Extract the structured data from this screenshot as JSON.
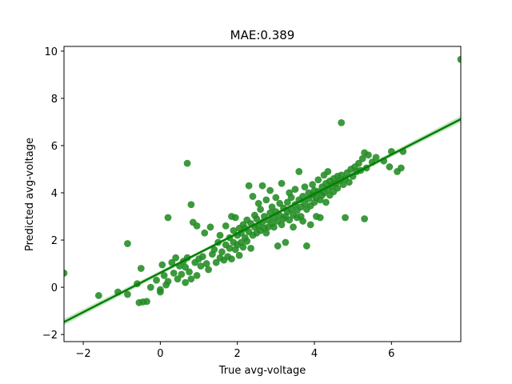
{
  "chart_data": {
    "type": "scatter",
    "title": "MAE:0.389",
    "xlabel": "True avg-voltage",
    "ylabel": "Predicted avg-voltage",
    "xlim": [
      -2.5,
      7.8
    ],
    "ylim": [
      -2.3,
      10.2
    ],
    "xticks": [
      "−2",
      "0",
      "2",
      "4",
      "6"
    ],
    "xtick_values": [
      -2,
      0,
      2,
      4,
      6
    ],
    "yticks": [
      "−2",
      "0",
      "2",
      "4",
      "6",
      "8",
      "10"
    ],
    "ytick_values": [
      -2,
      0,
      2,
      4,
      6,
      8,
      10
    ],
    "grid": false,
    "point_color": "#228B22",
    "line_color": "#008000",
    "band_color": "#9ed49e",
    "regression": {
      "x_start": -2.5,
      "y_start": -1.47,
      "x_end": 7.8,
      "y_end": 7.12,
      "band_halfwidth_ends": 0.14,
      "band_halfwidth_mid": 0.04
    },
    "points": [
      [
        -2.5,
        0.6
      ],
      [
        -1.6,
        -0.35
      ],
      [
        -1.1,
        -0.2
      ],
      [
        -0.85,
        1.85
      ],
      [
        -0.85,
        -0.3
      ],
      [
        -0.6,
        0.15
      ],
      [
        -0.5,
        0.8
      ],
      [
        -0.55,
        -0.65
      ],
      [
        -0.45,
        -0.62
      ],
      [
        -0.35,
        -0.6
      ],
      [
        -0.25,
        0.0
      ],
      [
        -0.1,
        0.3
      ],
      [
        0.0,
        -0.1
      ],
      [
        0.0,
        -0.2
      ],
      [
        0.05,
        0.95
      ],
      [
        0.1,
        0.5
      ],
      [
        0.15,
        0.1
      ],
      [
        0.2,
        0.25
      ],
      [
        0.2,
        2.95
      ],
      [
        0.3,
        1.05
      ],
      [
        0.35,
        0.6
      ],
      [
        0.4,
        1.25
      ],
      [
        0.45,
        0.35
      ],
      [
        0.5,
        0.9
      ],
      [
        0.55,
        0.55
      ],
      [
        0.6,
        1.1
      ],
      [
        0.65,
        0.2
      ],
      [
        0.65,
        0.85
      ],
      [
        0.7,
        5.25
      ],
      [
        0.7,
        1.25
      ],
      [
        0.75,
        0.65
      ],
      [
        0.8,
        3.5
      ],
      [
        0.8,
        0.35
      ],
      [
        0.85,
        2.75
      ],
      [
        0.9,
        1.05
      ],
      [
        0.95,
        2.6
      ],
      [
        0.95,
        0.5
      ],
      [
        1.0,
        1.2
      ],
      [
        1.05,
        0.9
      ],
      [
        1.1,
        1.3
      ],
      [
        1.15,
        2.3
      ],
      [
        1.2,
        1.0
      ],
      [
        1.25,
        0.75
      ],
      [
        1.3,
        2.55
      ],
      [
        1.35,
        1.4
      ],
      [
        1.4,
        1.6
      ],
      [
        1.45,
        1.05
      ],
      [
        1.5,
        1.9
      ],
      [
        1.55,
        1.25
      ],
      [
        1.55,
        2.2
      ],
      [
        1.6,
        1.5
      ],
      [
        1.65,
        1.15
      ],
      [
        1.7,
        1.8
      ],
      [
        1.7,
        2.6
      ],
      [
        1.75,
        1.3
      ],
      [
        1.8,
        1.65
      ],
      [
        1.8,
        2.1
      ],
      [
        1.85,
        1.2
      ],
      [
        1.85,
        3.0
      ],
      [
        1.9,
        1.9
      ],
      [
        1.9,
        2.4
      ],
      [
        1.95,
        1.6
      ],
      [
        1.95,
        2.95
      ],
      [
        2.0,
        2.2
      ],
      [
        2.0,
        1.8
      ],
      [
        2.05,
        2.5
      ],
      [
        2.05,
        1.35
      ],
      [
        2.1,
        2.3
      ],
      [
        2.1,
        1.9
      ],
      [
        2.15,
        2.65
      ],
      [
        2.15,
        1.7
      ],
      [
        2.2,
        2.1
      ],
      [
        2.2,
        2.5
      ],
      [
        2.25,
        1.95
      ],
      [
        2.25,
        2.85
      ],
      [
        2.3,
        2.35
      ],
      [
        2.3,
        4.3
      ],
      [
        2.35,
        2.7
      ],
      [
        2.35,
        1.65
      ],
      [
        2.4,
        2.2
      ],
      [
        2.4,
        3.85
      ],
      [
        2.45,
        2.55
      ],
      [
        2.45,
        3.05
      ],
      [
        2.5,
        2.3
      ],
      [
        2.5,
        2.9
      ],
      [
        2.55,
        2.6
      ],
      [
        2.55,
        3.55
      ],
      [
        2.6,
        2.4
      ],
      [
        2.6,
        3.3
      ],
      [
        2.65,
        2.75
      ],
      [
        2.65,
        4.3
      ],
      [
        2.7,
        2.5
      ],
      [
        2.7,
        3.0
      ],
      [
        2.75,
        2.3
      ],
      [
        2.75,
        3.7
      ],
      [
        2.8,
        2.85
      ],
      [
        2.8,
        2.55
      ],
      [
        2.85,
        3.15
      ],
      [
        2.85,
        4.1
      ],
      [
        2.9,
        2.7
      ],
      [
        2.9,
        3.4
      ],
      [
        2.95,
        2.95
      ],
      [
        2.95,
        2.55
      ],
      [
        3.0,
        3.2
      ],
      [
        3.0,
        3.8
      ],
      [
        3.05,
        2.8
      ],
      [
        3.05,
        1.75
      ],
      [
        3.1,
        3.05
      ],
      [
        3.1,
        3.55
      ],
      [
        3.15,
        2.65
      ],
      [
        3.15,
        4.4
      ],
      [
        3.2,
        3.35
      ],
      [
        3.2,
        2.9
      ],
      [
        3.25,
        3.0
      ],
      [
        3.25,
        1.9
      ],
      [
        3.3,
        3.6
      ],
      [
        3.3,
        3.2
      ],
      [
        3.35,
        2.85
      ],
      [
        3.35,
        4.0
      ],
      [
        3.4,
        3.3
      ],
      [
        3.4,
        3.8
      ],
      [
        3.45,
        3.05
      ],
      [
        3.45,
        2.55
      ],
      [
        3.5,
        3.5
      ],
      [
        3.5,
        4.15
      ],
      [
        3.55,
        3.25
      ],
      [
        3.55,
        2.95
      ],
      [
        3.6,
        3.7
      ],
      [
        3.6,
        4.9
      ],
      [
        3.65,
        3.4
      ],
      [
        3.65,
        3.0
      ],
      [
        3.7,
        3.85
      ],
      [
        3.7,
        2.8
      ],
      [
        3.75,
        3.55
      ],
      [
        3.75,
        4.25
      ],
      [
        3.8,
        3.3
      ],
      [
        3.8,
        1.75
      ],
      [
        3.85,
        3.75
      ],
      [
        3.85,
        4.0
      ],
      [
        3.9,
        3.45
      ],
      [
        3.9,
        2.65
      ],
      [
        3.95,
        3.9
      ],
      [
        3.95,
        4.35
      ],
      [
        4.0,
        3.6
      ],
      [
        4.0,
        4.1
      ],
      [
        4.05,
        3.8
      ],
      [
        4.05,
        3.0
      ],
      [
        4.1,
        4.05
      ],
      [
        4.1,
        4.55
      ],
      [
        4.15,
        3.7
      ],
      [
        4.15,
        2.95
      ],
      [
        4.2,
        4.25
      ],
      [
        4.2,
        3.9
      ],
      [
        4.25,
        4.0
      ],
      [
        4.25,
        4.75
      ],
      [
        4.3,
        4.4
      ],
      [
        4.3,
        3.6
      ],
      [
        4.35,
        4.15
      ],
      [
        4.35,
        4.9
      ],
      [
        4.4,
        4.5
      ],
      [
        4.4,
        3.9
      ],
      [
        4.45,
        4.3
      ],
      [
        4.5,
        4.6
      ],
      [
        4.5,
        4.05
      ],
      [
        4.55,
        4.4
      ],
      [
        4.6,
        4.7
      ],
      [
        4.6,
        4.2
      ],
      [
        4.65,
        4.5
      ],
      [
        4.7,
        4.75
      ],
      [
        4.7,
        6.97
      ],
      [
        4.75,
        4.35
      ],
      [
        4.8,
        4.6
      ],
      [
        4.8,
        2.95
      ],
      [
        4.85,
        4.85
      ],
      [
        4.9,
        4.45
      ],
      [
        4.95,
        5.0
      ],
      [
        5.0,
        4.7
      ],
      [
        5.05,
        5.1
      ],
      [
        5.1,
        4.9
      ],
      [
        5.15,
        5.25
      ],
      [
        5.2,
        4.95
      ],
      [
        5.25,
        5.45
      ],
      [
        5.3,
        5.7
      ],
      [
        5.3,
        2.9
      ],
      [
        5.35,
        5.05
      ],
      [
        5.4,
        5.6
      ],
      [
        5.5,
        5.3
      ],
      [
        5.6,
        5.5
      ],
      [
        5.8,
        5.35
      ],
      [
        5.95,
        5.1
      ],
      [
        6.0,
        5.75
      ],
      [
        6.15,
        4.9
      ],
      [
        6.25,
        5.05
      ],
      [
        6.3,
        5.75
      ],
      [
        7.8,
        9.65
      ]
    ]
  }
}
